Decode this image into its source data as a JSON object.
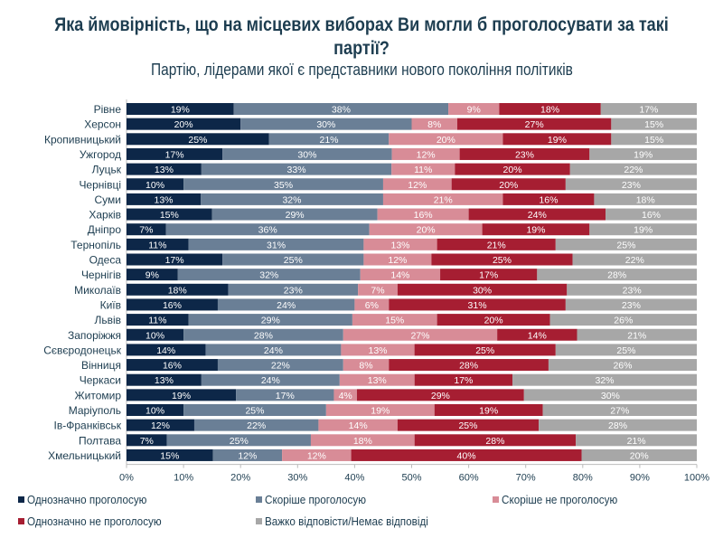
{
  "chart_data": {
    "type": "bar",
    "orientation": "horizontal",
    "stacked": true,
    "title": "Яка ймовірність, що на місцевих виборах Ви могли б проголосувати за такі партії?",
    "subtitle": "Партію, лідерами якої є представники нового покоління політиків",
    "xlim": [
      0,
      100
    ],
    "x_ticks": [
      "0%",
      "10%",
      "20%",
      "30%",
      "40%",
      "50%",
      "60%",
      "70%",
      "80%",
      "90%",
      "100%"
    ],
    "legend_position": "bottom",
    "categories": [
      "Рівне",
      "Херсон",
      "Кропивницький",
      "Ужгород",
      "Луцьк",
      "Чернівці",
      "Суми",
      "Харків",
      "Дніпро",
      "Тернопіль",
      "Одеса",
      "Чернігів",
      "Миколаїв",
      "Київ",
      "Львів",
      "Запоріжжя",
      "Сєвєродонецьк",
      "Вінниця",
      "Черкаси",
      "Житомир",
      "Маріуполь",
      "Ів-Франківськ",
      "Полтава",
      "Хмельницький"
    ],
    "series": [
      {
        "name": "Однозначно проголосую",
        "color": "#0d2748",
        "values": [
          19,
          20,
          25,
          17,
          13,
          10,
          13,
          15,
          7,
          11,
          17,
          9,
          18,
          16,
          11,
          10,
          14,
          16,
          13,
          19,
          10,
          12,
          7,
          15
        ]
      },
      {
        "name": "Скоріше проголосую",
        "color": "#6a7f96",
        "values": [
          38,
          30,
          21,
          30,
          33,
          35,
          32,
          29,
          36,
          31,
          25,
          32,
          23,
          24,
          29,
          28,
          24,
          22,
          24,
          17,
          25,
          22,
          25,
          12
        ]
      },
      {
        "name": "Скоріше не проголосую",
        "color": "#d88c97",
        "values": [
          9,
          8,
          20,
          12,
          11,
          12,
          21,
          16,
          20,
          13,
          12,
          14,
          7,
          6,
          15,
          27,
          13,
          8,
          13,
          4,
          19,
          14,
          18,
          12
        ]
      },
      {
        "name": "Однозначно не проголосую",
        "color": "#a61e32",
        "values": [
          18,
          27,
          19,
          23,
          20,
          20,
          16,
          24,
          19,
          21,
          25,
          17,
          30,
          31,
          20,
          14,
          25,
          28,
          17,
          29,
          19,
          25,
          28,
          40
        ]
      },
      {
        "name": "Важко відповісти/Немає відповіді",
        "color": "#a7a7a7",
        "values": [
          17,
          15,
          15,
          19,
          22,
          23,
          18,
          16,
          19,
          25,
          22,
          28,
          23,
          23,
          26,
          21,
          25,
          26,
          32,
          30,
          27,
          28,
          21,
          20
        ]
      }
    ],
    "value_suffix": "%"
  }
}
